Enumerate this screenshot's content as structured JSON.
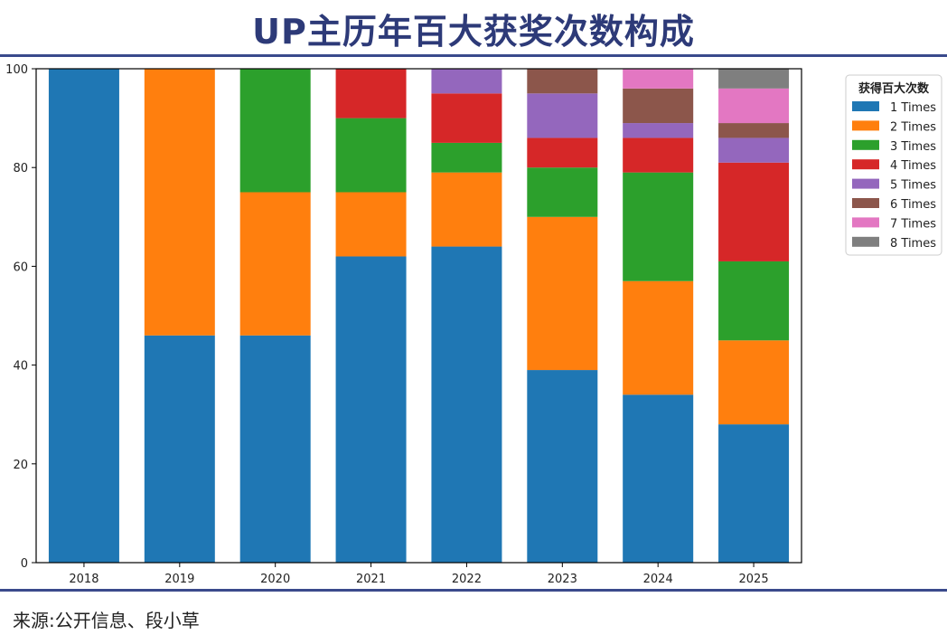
{
  "title": "UP主历年百大获奖次数构成",
  "source": "来源:公开信息、段小草",
  "chart_data": {
    "type": "bar",
    "stacked": true,
    "title": "UP主历年百大获奖次数构成",
    "xlabel": "",
    "ylabel": "",
    "ylim": [
      0,
      100
    ],
    "yticks": [
      0,
      20,
      40,
      60,
      80,
      100
    ],
    "grid": false,
    "legend_title": "获得百大次数",
    "legend_position": "right",
    "categories": [
      "2018",
      "2019",
      "2020",
      "2021",
      "2022",
      "2023",
      "2024",
      "2025"
    ],
    "series": [
      {
        "name": "1 Times",
        "color": "#1f77b4",
        "values": [
          100,
          46,
          46,
          62,
          64,
          39,
          34,
          28
        ]
      },
      {
        "name": "2 Times",
        "color": "#ff7f0e",
        "values": [
          0,
          54,
          29,
          13,
          15,
          31,
          23,
          17
        ]
      },
      {
        "name": "3 Times",
        "color": "#2ca02c",
        "values": [
          0,
          0,
          25,
          15,
          6,
          10,
          22,
          16
        ]
      },
      {
        "name": "4 Times",
        "color": "#d62728",
        "values": [
          0,
          0,
          0,
          10,
          10,
          6,
          7,
          20
        ]
      },
      {
        "name": "5 Times",
        "color": "#9467bd",
        "values": [
          0,
          0,
          0,
          0,
          5,
          9,
          3,
          5
        ]
      },
      {
        "name": "6 Times",
        "color": "#8c564b",
        "values": [
          0,
          0,
          0,
          0,
          0,
          5,
          7,
          3
        ]
      },
      {
        "name": "7 Times",
        "color": "#e377c2",
        "values": [
          0,
          0,
          0,
          0,
          0,
          0,
          4,
          7
        ]
      },
      {
        "name": "8 Times",
        "color": "#7f7f7f",
        "values": [
          0,
          0,
          0,
          0,
          0,
          0,
          0,
          4
        ]
      }
    ]
  }
}
